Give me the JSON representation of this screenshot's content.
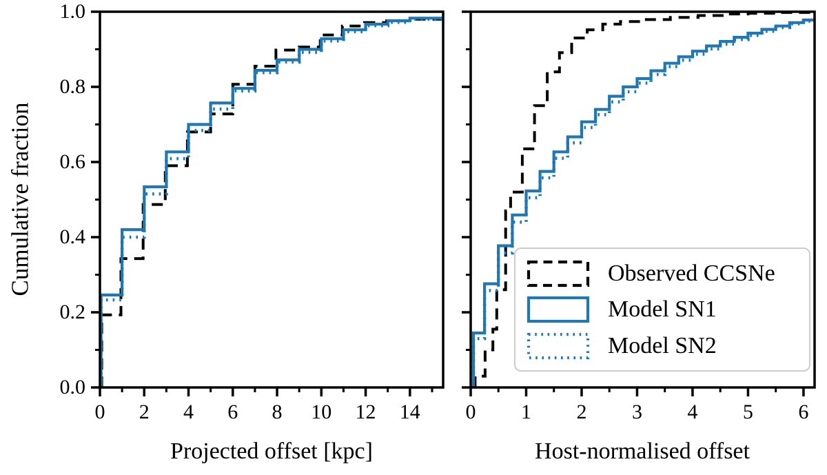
{
  "figure": {
    "background": "#ffffff"
  },
  "ylabel": "Cumulative fraction",
  "colors": {
    "observed": "#000000",
    "model_blue": "#1f77b4",
    "frame": "#000000",
    "legend_border": "#cccccc"
  },
  "legend": {
    "entries": [
      {
        "label": "Observed CCSNe",
        "style": "dashed",
        "color": "#000000"
      },
      {
        "label": "Model SN1",
        "style": "solid",
        "color": "#1f77b4"
      },
      {
        "label": "Model SN2",
        "style": "dotted",
        "color": "#1f77b4"
      }
    ]
  },
  "chart_data": [
    {
      "type": "step-cdf",
      "panel": "left",
      "xlabel": "Projected offset [kpc]",
      "xlim": [
        0,
        15.5
      ],
      "ylim": [
        0,
        1
      ],
      "grid": false,
      "xticks_major": [
        0,
        2,
        4,
        6,
        8,
        10,
        12,
        14
      ],
      "xtick_labels": [
        "0",
        "2",
        "4",
        "6",
        "8",
        "10",
        "12",
        "14"
      ],
      "xticks_minor": [
        1,
        3,
        5,
        7,
        9,
        11,
        13,
        15
      ],
      "yticks_major": [
        0.0,
        0.2,
        0.4,
        0.6,
        0.8,
        1.0
      ],
      "ytick_labels": [
        "0.0",
        "0.2",
        "0.4",
        "0.6",
        "0.8",
        "1.0"
      ],
      "yticks_minor": [
        0.1,
        0.3,
        0.5,
        0.7,
        0.9
      ],
      "series": [
        {
          "name": "Observed CCSNe",
          "style": "dashed",
          "color": "#000000",
          "width": 4,
          "steps": [
            [
              0.08,
              0.193
            ],
            [
              0.95,
              0.343
            ],
            [
              1.95,
              0.487
            ],
            [
              2.95,
              0.59
            ],
            [
              3.95,
              0.68
            ],
            [
              5.0,
              0.728
            ],
            [
              6.0,
              0.807
            ],
            [
              7.0,
              0.855
            ],
            [
              7.95,
              0.898
            ],
            [
              9.0,
              0.906
            ],
            [
              9.95,
              0.938
            ],
            [
              10.95,
              0.962
            ],
            [
              11.95,
              0.971
            ],
            [
              12.95,
              0.976
            ],
            [
              13.95,
              0.98
            ]
          ]
        },
        {
          "name": "Model SN1",
          "style": "solid",
          "color": "#1f77b4",
          "width": 4.2,
          "steps": [
            [
              0.05,
              0.246
            ],
            [
              1,
              0.42
            ],
            [
              2,
              0.534
            ],
            [
              3,
              0.627
            ],
            [
              4,
              0.7
            ],
            [
              5,
              0.757
            ],
            [
              6,
              0.796
            ],
            [
              7,
              0.844
            ],
            [
              8,
              0.872
            ],
            [
              9,
              0.9
            ],
            [
              10,
              0.928
            ],
            [
              11,
              0.952
            ],
            [
              12,
              0.967
            ],
            [
              13,
              0.976
            ],
            [
              14,
              0.983
            ]
          ]
        },
        {
          "name": "Model SN2",
          "style": "dotted",
          "color": "#1f77b4",
          "width": 4.6,
          "steps": [
            [
              0.05,
              0.233
            ],
            [
              1,
              0.4
            ],
            [
              2,
              0.515
            ],
            [
              3,
              0.609
            ],
            [
              4,
              0.684
            ],
            [
              5,
              0.741
            ],
            [
              6,
              0.789
            ],
            [
              7,
              0.838
            ],
            [
              8,
              0.866
            ],
            [
              9,
              0.892
            ],
            [
              10,
              0.922
            ],
            [
              11,
              0.947
            ],
            [
              12,
              0.963
            ],
            [
              13,
              0.972
            ],
            [
              14,
              0.98
            ]
          ]
        }
      ]
    },
    {
      "type": "step-cdf",
      "panel": "right",
      "xlabel": "Host-normalised offset",
      "xlim": [
        0,
        6.2
      ],
      "ylim": [
        0,
        1
      ],
      "grid": false,
      "xticks_major": [
        0,
        1,
        2,
        3,
        4,
        5,
        6
      ],
      "xtick_labels": [
        "0",
        "1",
        "2",
        "3",
        "4",
        "5",
        "6"
      ],
      "xticks_minor": [
        0.5,
        1.5,
        2.5,
        3.5,
        4.5,
        5.5
      ],
      "yticks_major": [
        0.0,
        0.2,
        0.4,
        0.6,
        0.8,
        1.0
      ],
      "ytick_labels": [],
      "yticks_minor": [
        0.1,
        0.3,
        0.5,
        0.7,
        0.9
      ],
      "series": [
        {
          "name": "Observed CCSNe",
          "style": "dashed",
          "color": "#000000",
          "width": 4,
          "steps": [
            [
              0.08,
              0.03
            ],
            [
              0.26,
              0.1
            ],
            [
              0.4,
              0.155
            ],
            [
              0.47,
              0.26
            ],
            [
              0.63,
              0.47
            ],
            [
              0.72,
              0.52
            ],
            [
              0.93,
              0.635
            ],
            [
              1.15,
              0.75
            ],
            [
              1.38,
              0.84
            ],
            [
              1.6,
              0.891
            ],
            [
              1.82,
              0.93
            ],
            [
              2.1,
              0.952
            ],
            [
              2.38,
              0.967
            ],
            [
              2.7,
              0.974
            ],
            [
              3.1,
              0.979
            ],
            [
              3.6,
              0.985
            ],
            [
              4.1,
              0.99
            ],
            [
              4.6,
              0.994
            ],
            [
              5.0,
              0.996
            ],
            [
              5.5,
              0.998
            ]
          ]
        },
        {
          "name": "Model SN1",
          "style": "solid",
          "color": "#1f77b4",
          "width": 4.2,
          "steps": [
            [
              0.05,
              0.145
            ],
            [
              0.25,
              0.276
            ],
            [
              0.5,
              0.377
            ],
            [
              0.75,
              0.459
            ],
            [
              1.0,
              0.523
            ],
            [
              1.25,
              0.575
            ],
            [
              1.5,
              0.627
            ],
            [
              1.75,
              0.667
            ],
            [
              2.0,
              0.707
            ],
            [
              2.25,
              0.74
            ],
            [
              2.5,
              0.775
            ],
            [
              2.75,
              0.8
            ],
            [
              3.0,
              0.822
            ],
            [
              3.25,
              0.843
            ],
            [
              3.5,
              0.863
            ],
            [
              3.75,
              0.88
            ],
            [
              4.0,
              0.895
            ],
            [
              4.25,
              0.909
            ],
            [
              4.5,
              0.921
            ],
            [
              4.75,
              0.932
            ],
            [
              5.0,
              0.943
            ],
            [
              5.25,
              0.953
            ],
            [
              5.5,
              0.962
            ],
            [
              5.75,
              0.971
            ],
            [
              6.0,
              0.978
            ]
          ]
        },
        {
          "name": "Model SN2",
          "style": "dotted",
          "color": "#1f77b4",
          "width": 4.6,
          "steps": [
            [
              0.05,
              0.13
            ],
            [
              0.25,
              0.258
            ],
            [
              0.5,
              0.358
            ],
            [
              0.75,
              0.44
            ],
            [
              1.0,
              0.505
            ],
            [
              1.25,
              0.558
            ],
            [
              1.5,
              0.61
            ],
            [
              1.75,
              0.651
            ],
            [
              2.0,
              0.692
            ],
            [
              2.25,
              0.726
            ],
            [
              2.5,
              0.76
            ],
            [
              2.75,
              0.787
            ],
            [
              3.0,
              0.81
            ],
            [
              3.25,
              0.833
            ],
            [
              3.5,
              0.854
            ],
            [
              3.75,
              0.871
            ],
            [
              4.0,
              0.887
            ],
            [
              4.25,
              0.901
            ],
            [
              4.5,
              0.914
            ],
            [
              4.75,
              0.926
            ],
            [
              5.0,
              0.937
            ],
            [
              5.25,
              0.948
            ],
            [
              5.5,
              0.958
            ],
            [
              5.75,
              0.968
            ],
            [
              6.0,
              0.975
            ]
          ]
        }
      ]
    }
  ]
}
